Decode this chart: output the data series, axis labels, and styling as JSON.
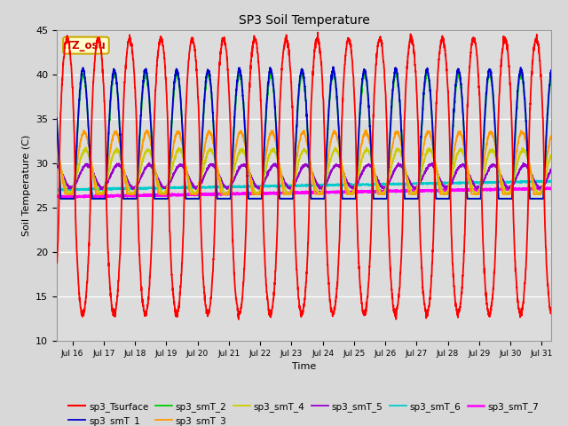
{
  "title": "SP3 Soil Temperature",
  "xlabel": "Time",
  "ylabel": "Soil Temperature (C)",
  "ylim": [
    10,
    45
  ],
  "xlim_days": [
    15.5,
    31.3
  ],
  "tz_label": "TZ_osu",
  "series_colors": {
    "sp3_Tsurface": "#ff0000",
    "sp3_smT_1": "#0000cc",
    "sp3_smT_2": "#00cc00",
    "sp3_smT_3": "#ff9900",
    "sp3_smT_4": "#cccc00",
    "sp3_smT_5": "#9900cc",
    "sp3_smT_6": "#00cccc",
    "sp3_smT_7": "#ff00ff"
  },
  "fig_bg": "#d8d8d8",
  "plot_bg": "#dcdcdc",
  "yticks": [
    10,
    15,
    20,
    25,
    30,
    35,
    40,
    45
  ],
  "xtick_positions": [
    16,
    17,
    18,
    19,
    20,
    21,
    22,
    23,
    24,
    25,
    26,
    27,
    28,
    29,
    30,
    31
  ],
  "xtick_labels": [
    "Jul 16",
    "Jul 17",
    "Jul 18",
    "Jul 19",
    "Jul 20",
    "Jul 21",
    "Jul 22",
    "Jul 23",
    "Jul 24",
    "Jul 25",
    "Jul 26",
    "Jul 27",
    "Jul 28",
    "Jul 29",
    "Jul 30",
    "Jul 31"
  ]
}
